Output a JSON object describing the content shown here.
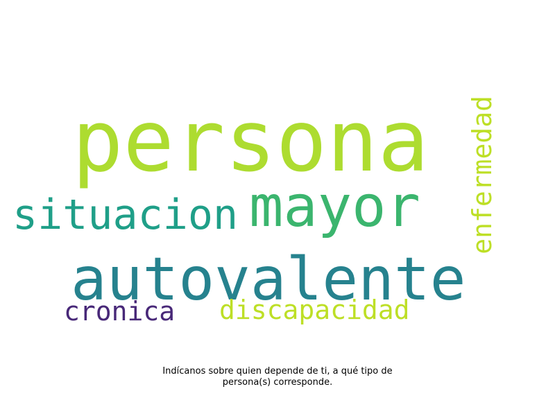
{
  "wordcloud": {
    "words": {
      "persona": {
        "text": "persona",
        "color": "#addc30"
      },
      "mayor": {
        "text": "mayor",
        "color": "#3bb56e"
      },
      "situacion": {
        "text": "situacion",
        "color": "#1f9f88"
      },
      "autovalente": {
        "text": "autovalente",
        "color": "#26828e"
      },
      "cronica": {
        "text": "cronica",
        "color": "#482878"
      },
      "discapacidad": {
        "text": "discapacidad",
        "color": "#bddf26"
      },
      "enfermedad": {
        "text": "enfermedad",
        "color": "#bddf26"
      }
    }
  },
  "caption": {
    "line1": "Indícanos sobre quien depende de ti, a qué tipo de",
    "line2": "persona(s) corresponde."
  }
}
